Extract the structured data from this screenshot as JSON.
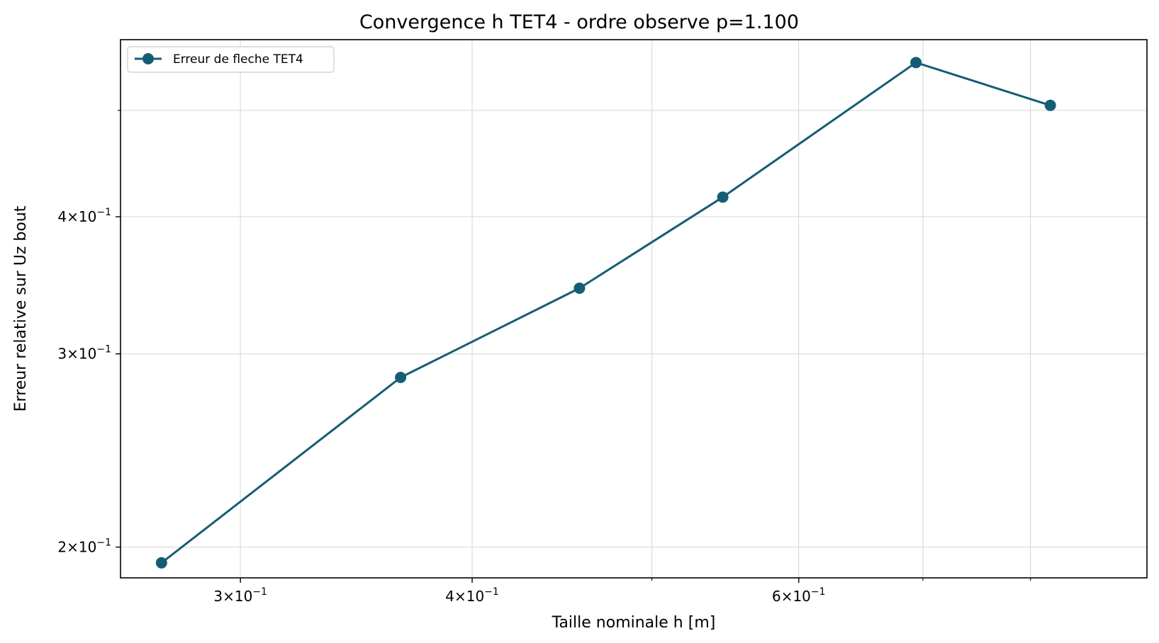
{
  "chart_data": {
    "type": "line",
    "title": "Convergence h TET4 - ordre observe p=1.100",
    "xlabel": "Taille nominale h [m]",
    "ylabel": "Erreur relative sur Uz bout",
    "xscale": "log",
    "yscale": "log",
    "xlim": [
      0.2585,
      0.9245
    ],
    "ylim": [
      0.1875,
      0.58
    ],
    "grid": true,
    "legend_position": "top-left",
    "x_major_ticks": [
      {
        "value": 0.3,
        "mantissa": "3",
        "exponent": "−1"
      },
      {
        "value": 0.4,
        "mantissa": "4",
        "exponent": "−1"
      },
      {
        "value": 0.6,
        "mantissa": "6",
        "exponent": "−1"
      }
    ],
    "x_minor_ticks": [
      0.5,
      0.7,
      0.8
    ],
    "y_major_ticks": [
      {
        "value": 0.2,
        "mantissa": "2",
        "exponent": "−1"
      },
      {
        "value": 0.3,
        "mantissa": "3",
        "exponent": "−1"
      },
      {
        "value": 0.4,
        "mantissa": "4",
        "exponent": "−1"
      }
    ],
    "y_minor_ticks": [
      0.5
    ],
    "series": [
      {
        "name": "Erreur de fleche TET4",
        "color": "#155d75",
        "marker": "circle",
        "x": [
          0.272,
          0.366,
          0.457,
          0.546,
          0.694,
          0.82
        ],
        "y": [
          0.1935,
          0.2855,
          0.3443,
          0.4168,
          0.5528,
          0.5053
        ]
      }
    ]
  }
}
